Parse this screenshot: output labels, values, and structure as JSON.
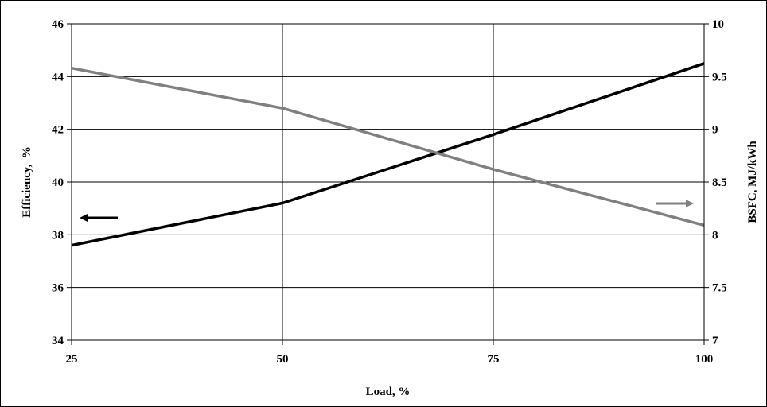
{
  "chart_data": {
    "type": "line",
    "title": "",
    "xlabel": "Load, %",
    "ylabel": "Efficiency,  %",
    "ylabel_right": "BSFC, MJ/kWh",
    "x": [
      25,
      50,
      75,
      100
    ],
    "x_ticks": [
      "25",
      "50",
      "75",
      "100"
    ],
    "xlim": [
      25,
      100
    ],
    "ylim": [
      34,
      46
    ],
    "y_ticks": [
      "34",
      "36",
      "38",
      "40",
      "42",
      "44",
      "46"
    ],
    "ylim_right": [
      7,
      10
    ],
    "y_ticks_right": [
      "7",
      "7.5",
      "8",
      "8.5",
      "9",
      "9.5",
      "10"
    ],
    "grid": true,
    "series": [
      {
        "axis": "left",
        "color": "#000000",
        "values": [
          37.6,
          39.2,
          41.8,
          44.5
        ]
      },
      {
        "axis": "right",
        "color": "#808080",
        "values": [
          9.58,
          9.2,
          8.62,
          8.09
        ]
      }
    ],
    "annotations": [
      {
        "kind": "arrow",
        "direction": "left",
        "color": "#000000",
        "points_to": "left axis"
      },
      {
        "kind": "arrow",
        "direction": "right",
        "color": "#808080",
        "points_to": "right axis"
      }
    ]
  }
}
